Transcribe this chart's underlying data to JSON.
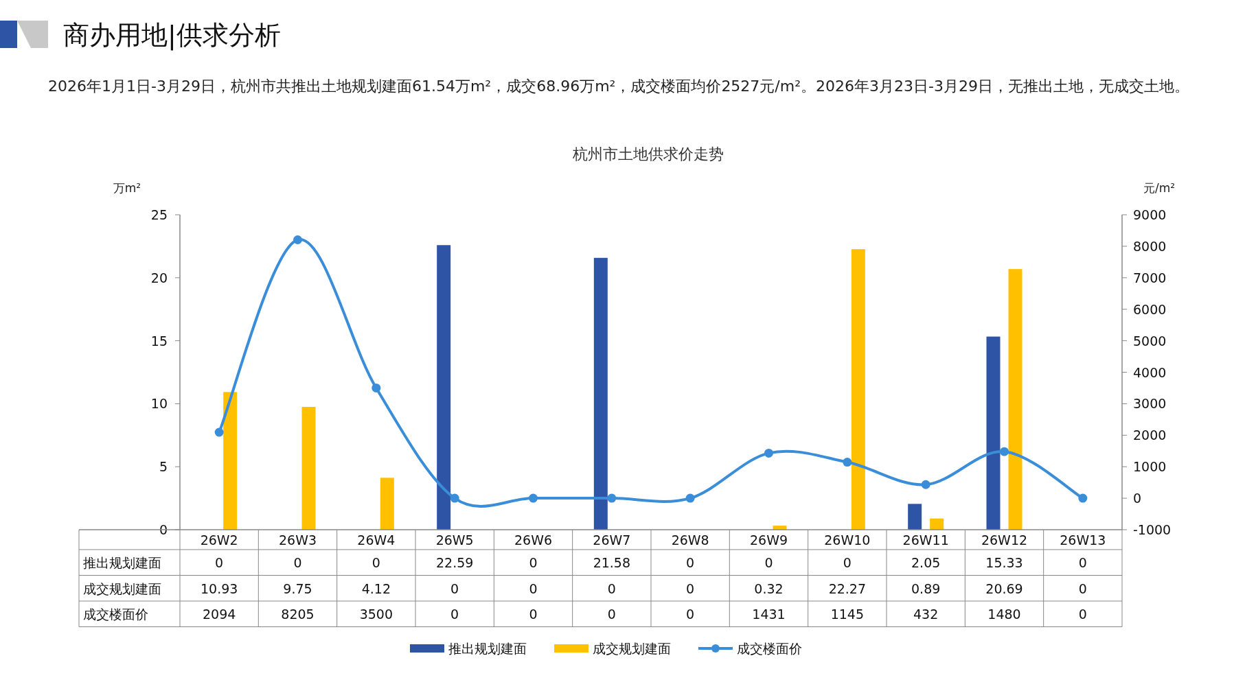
{
  "chart_data": {
    "type": "bar",
    "title": "杭州市土地供求价走势",
    "annotations": [
      "商办用地|供求分析",
      "2026年1月1日-3月29日，杭州市共推出土地规划建面61.54万m²，成交68.96万m²，成交楼面均价2527元/m²。2026年3月23日-3月29日，无推出土地，无成交土地。"
    ],
    "ylabel": "万m²",
    "y2label": "元/m²",
    "categories": [
      "26W2",
      "26W3",
      "26W4",
      "26W5",
      "26W6",
      "26W7",
      "26W8",
      "26W9",
      "26W10",
      "26W11",
      "26W12",
      "26W13"
    ],
    "series": [
      {
        "name": "推出规划建面",
        "color": "#2e55a5",
        "values": [
          0,
          0,
          0,
          22.59,
          0,
          21.58,
          0,
          0,
          0,
          2.05,
          15.33,
          0
        ]
      },
      {
        "name": "成交规划建面",
        "color": "#ffc000",
        "values": [
          10.93,
          9.75,
          4.12,
          0,
          0,
          0,
          0,
          0.32,
          22.27,
          0.89,
          20.69,
          0
        ]
      },
      {
        "name": "成交楼面价",
        "type": "line",
        "axis": "y2",
        "color": "#3a8dd8",
        "marker": "circle",
        "values": [
          2094,
          8205,
          3500,
          0,
          0,
          0,
          0,
          1431,
          1145,
          432,
          1480,
          0
        ]
      }
    ],
    "ylim": [
      0,
      25
    ],
    "yticks": [
      0,
      5,
      10,
      15,
      20,
      25
    ],
    "y2lim": [
      -1000,
      9000
    ],
    "y2ticks": [
      -1000,
      0,
      1000,
      2000,
      3000,
      4000,
      5000,
      6000,
      7000,
      8000,
      9000
    ],
    "data_labels": true,
    "legend": "bottom",
    "grid": false
  }
}
